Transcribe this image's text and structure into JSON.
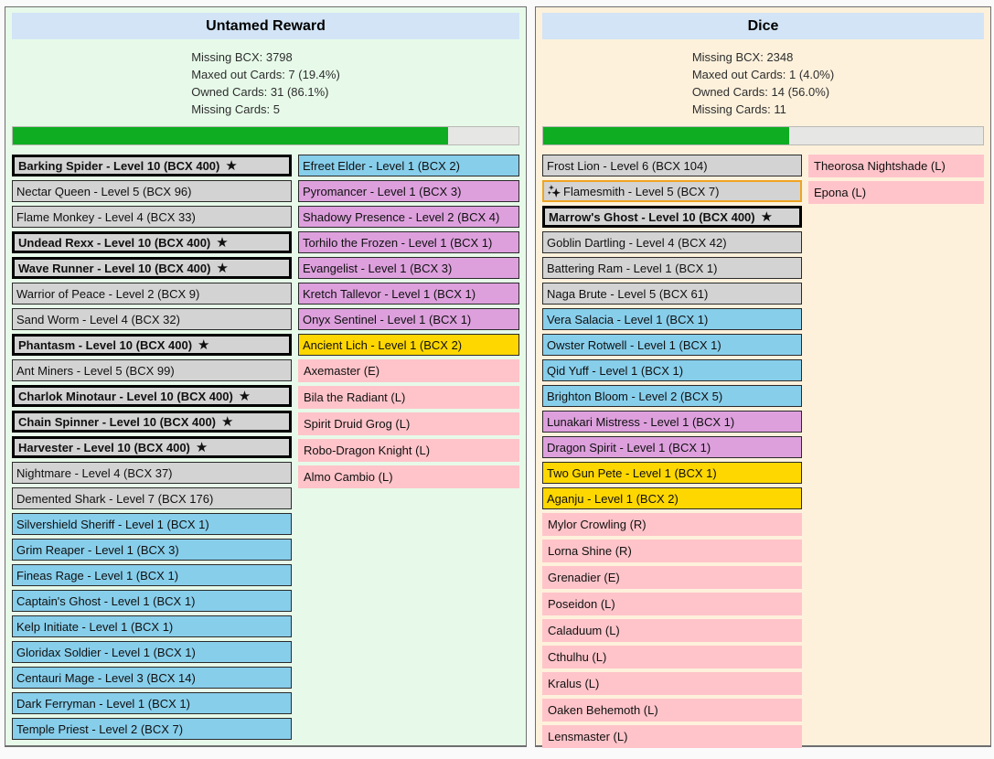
{
  "icons": {
    "max_level_star": "★",
    "sparkles": "svg-three-4-point-stars"
  },
  "colors": {
    "progress_fill_green": "#0ead22",
    "progress_track": "#e6e6e5",
    "header_bg": "#d2e4f6",
    "panel_left_bg": "#e7fae9",
    "panel_right_bg": "#fdf1dc",
    "card_owned_gray": "#d3d3d3",
    "card_blue": "#87ceeb",
    "card_purple": "#dda0dd",
    "card_gold": "#ffd700",
    "card_missing_pink": "#ffc4ca",
    "sparkle_border_orange": "#eea421",
    "maxed_border": "#000000"
  },
  "panels": [
    {
      "title": "Untamed Reward",
      "stats": [
        "Missing BCX: 3798",
        "Maxed out Cards: 7 (19.4%)",
        "Owned Cards: 31 (86.1%)",
        "Missing Cards: 5"
      ],
      "progress_percent": 86.1,
      "columns": [
        [
          {
            "label": "Barking Spider - Level 10 (BCX 400)",
            "type": "maxed"
          },
          {
            "label": "Nectar Queen - Level 5 (BCX 96)",
            "type": "owned"
          },
          {
            "label": "Flame Monkey - Level 4 (BCX 33)",
            "type": "owned"
          },
          {
            "label": "Undead Rexx - Level 10 (BCX 400)",
            "type": "maxed"
          },
          {
            "label": "Wave Runner - Level 10 (BCX 400)",
            "type": "maxed"
          },
          {
            "label": "Warrior of Peace - Level 2 (BCX 9)",
            "type": "owned"
          },
          {
            "label": "Sand Worm - Level 4 (BCX 32)",
            "type": "owned"
          },
          {
            "label": "Phantasm - Level 10 (BCX 400)",
            "type": "maxed"
          },
          {
            "label": "Ant Miners - Level 5 (BCX 99)",
            "type": "owned"
          },
          {
            "label": "Charlok Minotaur - Level 10 (BCX 400)",
            "type": "maxed"
          },
          {
            "label": "Chain Spinner - Level 10 (BCX 400)",
            "type": "maxed"
          },
          {
            "label": "Harvester - Level 10 (BCX 400)",
            "type": "maxed"
          },
          {
            "label": "Nightmare - Level 4 (BCX 37)",
            "type": "owned"
          },
          {
            "label": "Demented Shark - Level 7 (BCX 176)",
            "type": "owned"
          },
          {
            "label": "Silvershield Sheriff - Level 1 (BCX 1)",
            "type": "blue"
          },
          {
            "label": "Grim Reaper - Level 1 (BCX 3)",
            "type": "blue"
          },
          {
            "label": "Fineas Rage - Level 1 (BCX 1)",
            "type": "blue"
          },
          {
            "label": "Captain's Ghost - Level 1 (BCX 1)",
            "type": "blue"
          },
          {
            "label": "Kelp Initiate - Level 1 (BCX 1)",
            "type": "blue"
          },
          {
            "label": "Gloridax Soldier - Level 1 (BCX 1)",
            "type": "blue"
          },
          {
            "label": "Centauri Mage - Level 3 (BCX 14)",
            "type": "blue"
          },
          {
            "label": "Dark Ferryman - Level 1 (BCX 1)",
            "type": "blue"
          },
          {
            "label": "Temple Priest - Level 2 (BCX 7)",
            "type": "blue"
          }
        ],
        [
          {
            "label": "Efreet Elder - Level 1 (BCX 2)",
            "type": "blue"
          },
          {
            "label": "Pyromancer - Level 1 (BCX 3)",
            "type": "purple"
          },
          {
            "label": "Shadowy Presence - Level 2 (BCX 4)",
            "type": "purple"
          },
          {
            "label": "Torhilo the Frozen - Level 1 (BCX 1)",
            "type": "purple"
          },
          {
            "label": "Evangelist - Level 1 (BCX 3)",
            "type": "purple"
          },
          {
            "label": "Kretch Tallevor - Level 1 (BCX 1)",
            "type": "purple"
          },
          {
            "label": "Onyx Sentinel - Level 1 (BCX 1)",
            "type": "purple"
          },
          {
            "label": "Ancient Lich - Level 1 (BCX 2)",
            "type": "gold"
          },
          {
            "label": "Axemaster (E)",
            "type": "missing"
          },
          {
            "label": "Bila the Radiant (L)",
            "type": "missing"
          },
          {
            "label": "Spirit Druid Grog (L)",
            "type": "missing"
          },
          {
            "label": "Robo-Dragon Knight (L)",
            "type": "missing"
          },
          {
            "label": "Almo Cambio (L)",
            "type": "missing"
          }
        ]
      ]
    },
    {
      "title": "Dice",
      "stats": [
        "Missing BCX: 2348",
        "Maxed out Cards: 1 (4.0%)",
        "Owned Cards: 14 (56.0%)",
        "Missing Cards: 11"
      ],
      "progress_percent": 56.0,
      "columns": [
        [
          {
            "label": "Frost Lion - Level 6 (BCX 104)",
            "type": "owned"
          },
          {
            "label": "Flamesmith - Level 5 (BCX 7)",
            "type": "sparkle"
          },
          {
            "label": "Marrow's Ghost - Level 10 (BCX 400)",
            "type": "maxed"
          },
          {
            "label": "Goblin Dartling - Level 4 (BCX 42)",
            "type": "owned"
          },
          {
            "label": "Battering Ram - Level 1 (BCX 1)",
            "type": "owned"
          },
          {
            "label": "Naga Brute - Level 5 (BCX 61)",
            "type": "owned"
          },
          {
            "label": "Vera Salacia - Level 1 (BCX 1)",
            "type": "blue"
          },
          {
            "label": "Owster Rotwell - Level 1 (BCX 1)",
            "type": "blue"
          },
          {
            "label": "Qid Yuff - Level 1 (BCX 1)",
            "type": "blue"
          },
          {
            "label": "Brighton Bloom - Level 2 (BCX 5)",
            "type": "blue"
          },
          {
            "label": "Lunakari Mistress - Level 1 (BCX 1)",
            "type": "purple"
          },
          {
            "label": "Dragon Spirit - Level 1 (BCX 1)",
            "type": "purple"
          },
          {
            "label": "Two Gun Pete - Level 1 (BCX 1)",
            "type": "gold"
          },
          {
            "label": "Aganju - Level 1 (BCX 2)",
            "type": "gold"
          },
          {
            "label": "Mylor Crowling (R)",
            "type": "missing"
          },
          {
            "label": "Lorna Shine (R)",
            "type": "missing"
          },
          {
            "label": "Grenadier (E)",
            "type": "missing"
          },
          {
            "label": "Poseidon (L)",
            "type": "missing"
          },
          {
            "label": "Caladuum (L)",
            "type": "missing"
          },
          {
            "label": "Cthulhu (L)",
            "type": "missing"
          },
          {
            "label": "Kralus (L)",
            "type": "missing"
          },
          {
            "label": "Oaken Behemoth (L)",
            "type": "missing"
          },
          {
            "label": "Lensmaster (L)",
            "type": "missing"
          }
        ],
        [
          {
            "label": "Theorosa Nightshade (L)",
            "type": "missing"
          },
          {
            "label": "Epona (L)",
            "type": "missing"
          }
        ]
      ]
    }
  ]
}
